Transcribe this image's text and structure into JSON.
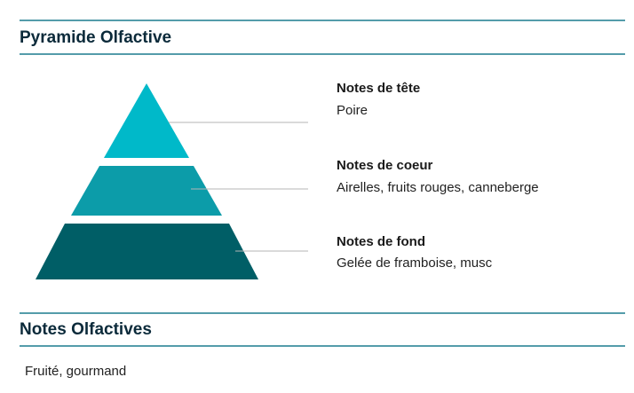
{
  "pyramid": {
    "title": "Pyramide Olfactive",
    "levels": [
      {
        "label": "Notes de tête",
        "description": "Poire"
      },
      {
        "label": "Notes de coeur",
        "description": "Airelles, fruits rouges, canneberge"
      },
      {
        "label": "Notes de fond",
        "description": "Gelée de framboise, musc"
      }
    ]
  },
  "notes": {
    "title": "Notes Olfactives",
    "text": "Fruité, gourmand"
  }
}
